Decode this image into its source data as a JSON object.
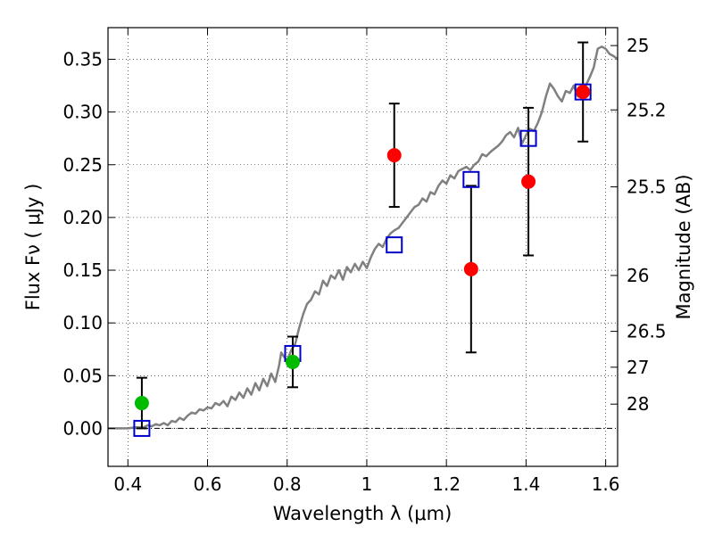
{
  "chart_data": {
    "type": "scatter",
    "title": "",
    "xlabel": "Wavelength  λ (μm)",
    "ylabel": "Flux  Fν  ( μJy )",
    "ylabel2": "Magnitude (AB)",
    "xlim": [
      0.35,
      1.63
    ],
    "ylim": [
      -0.036,
      0.38
    ],
    "grid": true,
    "x_ticks": [
      {
        "value": 0.4,
        "label": "0.4"
      },
      {
        "value": 0.6,
        "label": "0.6"
      },
      {
        "value": 0.8,
        "label": "0.8"
      },
      {
        "value": 1.0,
        "label": "1"
      },
      {
        "value": 1.2,
        "label": "1.2"
      },
      {
        "value": 1.4,
        "label": "1.4"
      },
      {
        "value": 1.6,
        "label": "1.6"
      }
    ],
    "y_ticks": [
      {
        "value": 0.0,
        "label": "0.00"
      },
      {
        "value": 0.05,
        "label": "0.05"
      },
      {
        "value": 0.1,
        "label": "0.10"
      },
      {
        "value": 0.15,
        "label": "0.15"
      },
      {
        "value": 0.2,
        "label": "0.20"
      },
      {
        "value": 0.25,
        "label": "0.25"
      },
      {
        "value": 0.3,
        "label": "0.30"
      },
      {
        "value": 0.35,
        "label": "0.35"
      }
    ],
    "y2_ticks": [
      {
        "flux": 0.363,
        "label": "25"
      },
      {
        "flux": 0.302,
        "label": "25.2"
      },
      {
        "flux": 0.229,
        "label": "25.5"
      },
      {
        "flux": 0.145,
        "label": "26"
      },
      {
        "flux": 0.092,
        "label": "26.5"
      },
      {
        "flux": 0.058,
        "label": "27"
      },
      {
        "flux": 0.023,
        "label": "28"
      }
    ],
    "model_spectrum": {
      "color": "#808080",
      "x": [
        0.35,
        0.4,
        0.42,
        0.44,
        0.45,
        0.46,
        0.47,
        0.48,
        0.49,
        0.5,
        0.51,
        0.52,
        0.53,
        0.54,
        0.55,
        0.56,
        0.57,
        0.58,
        0.59,
        0.6,
        0.61,
        0.62,
        0.63,
        0.64,
        0.65,
        0.66,
        0.67,
        0.68,
        0.69,
        0.7,
        0.71,
        0.72,
        0.73,
        0.74,
        0.75,
        0.76,
        0.77,
        0.78,
        0.785,
        0.79,
        0.8,
        0.81,
        0.82,
        0.83,
        0.84,
        0.85,
        0.86,
        0.87,
        0.88,
        0.89,
        0.9,
        0.91,
        0.92,
        0.93,
        0.94,
        0.95,
        0.96,
        0.97,
        0.98,
        0.99,
        1.0,
        1.01,
        1.02,
        1.03,
        1.04,
        1.05,
        1.06,
        1.07,
        1.08,
        1.09,
        1.1,
        1.11,
        1.12,
        1.13,
        1.14,
        1.15,
        1.16,
        1.17,
        1.18,
        1.19,
        1.2,
        1.21,
        1.22,
        1.23,
        1.24,
        1.25,
        1.26,
        1.27,
        1.28,
        1.29,
        1.3,
        1.31,
        1.32,
        1.33,
        1.34,
        1.35,
        1.36,
        1.37,
        1.38,
        1.39,
        1.4,
        1.41,
        1.42,
        1.43,
        1.44,
        1.45,
        1.46,
        1.47,
        1.48,
        1.49,
        1.5,
        1.51,
        1.52,
        1.53,
        1.54,
        1.55,
        1.56,
        1.57,
        1.58,
        1.59,
        1.6,
        1.61,
        1.62,
        1.63
      ],
      "y": [
        0.0,
        0.0,
        0.001,
        0.001,
        0.003,
        0.002,
        0.004,
        0.003,
        0.005,
        0.003,
        0.007,
        0.006,
        0.01,
        0.008,
        0.012,
        0.015,
        0.014,
        0.018,
        0.017,
        0.02,
        0.019,
        0.024,
        0.022,
        0.026,
        0.021,
        0.03,
        0.027,
        0.034,
        0.029,
        0.038,
        0.032,
        0.043,
        0.036,
        0.047,
        0.04,
        0.052,
        0.044,
        0.06,
        0.072,
        0.069,
        0.064,
        0.074,
        0.08,
        0.095,
        0.108,
        0.118,
        0.122,
        0.13,
        0.127,
        0.14,
        0.135,
        0.145,
        0.142,
        0.15,
        0.141,
        0.153,
        0.148,
        0.156,
        0.15,
        0.158,
        0.152,
        0.162,
        0.17,
        0.175,
        0.172,
        0.18,
        0.185,
        0.188,
        0.19,
        0.195,
        0.2,
        0.205,
        0.21,
        0.212,
        0.218,
        0.215,
        0.224,
        0.222,
        0.23,
        0.235,
        0.232,
        0.24,
        0.237,
        0.244,
        0.246,
        0.248,
        0.245,
        0.25,
        0.253,
        0.26,
        0.258,
        0.262,
        0.265,
        0.268,
        0.272,
        0.278,
        0.281,
        0.276,
        0.285,
        0.27,
        0.278,
        0.284,
        0.282,
        0.29,
        0.3,
        0.315,
        0.327,
        0.322,
        0.315,
        0.31,
        0.32,
        0.318,
        0.325,
        0.315,
        0.318,
        0.325,
        0.333,
        0.342,
        0.36,
        0.362,
        0.36,
        0.355,
        0.353,
        0.35
      ]
    },
    "series": [
      {
        "marker": "square",
        "color": "#0000cc",
        "points": [
          {
            "x": 0.435,
            "y": 0.0
          },
          {
            "x": 0.814,
            "y": 0.071
          },
          {
            "x": 1.069,
            "y": 0.174
          },
          {
            "x": 1.262,
            "y": 0.236
          },
          {
            "x": 1.406,
            "y": 0.275
          },
          {
            "x": 1.543,
            "y": 0.319
          }
        ]
      },
      {
        "marker": "circle",
        "color": "#00bb00",
        "points": [
          {
            "x": 0.435,
            "y": 0.024,
            "err": 0.024
          },
          {
            "x": 0.814,
            "y": 0.063,
            "err": 0.024
          }
        ]
      },
      {
        "marker": "circle",
        "color": "#ff0000",
        "points": [
          {
            "x": 1.069,
            "y": 0.259,
            "err": 0.049
          },
          {
            "x": 1.262,
            "y": 0.151,
            "err": 0.079
          },
          {
            "x": 1.406,
            "y": 0.234,
            "err": 0.07
          },
          {
            "x": 1.543,
            "y": 0.319,
            "err": 0.047
          }
        ]
      }
    ]
  }
}
